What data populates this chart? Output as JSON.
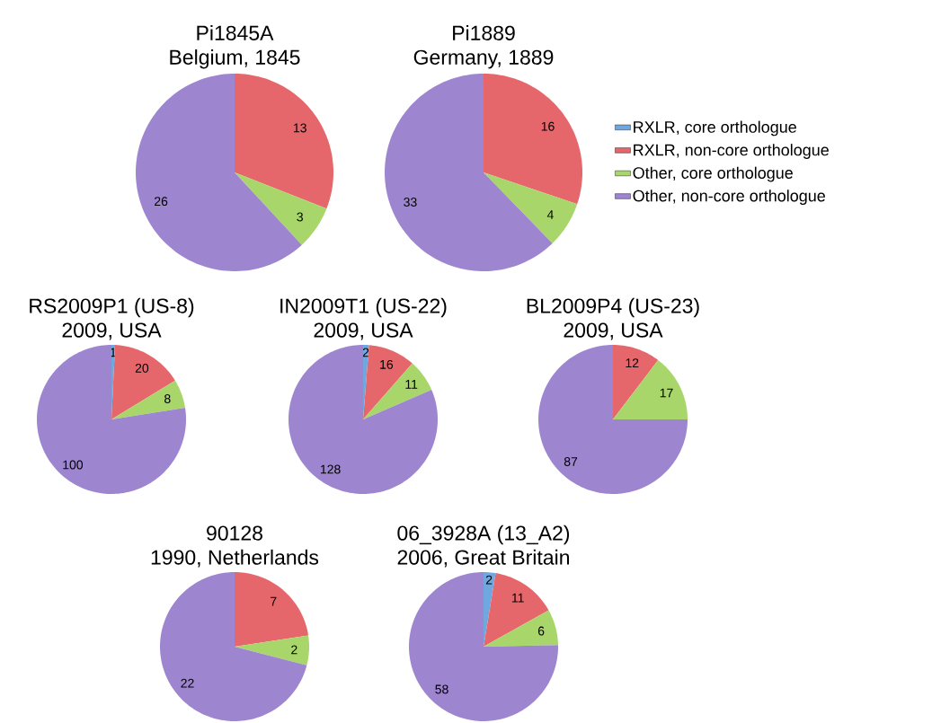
{
  "chart_data": [
    {
      "type": "pie",
      "title": "Pi1845A",
      "subtitle": "Belgium, 1845",
      "categories": [
        null,
        null,
        null,
        null
      ],
      "values": [
        0,
        13,
        3,
        26
      ],
      "value_labels": [
        null,
        "13",
        "3",
        "26"
      ],
      "colors": [
        "#6fa8e0",
        "#e5676b",
        "#a9d66b",
        "#9d85d0"
      ]
    },
    {
      "type": "pie",
      "title": "Pi1889",
      "subtitle": "Germany, 1889",
      "categories": [
        "RXLR, core orthologue",
        "RXLR, non-core orthologue",
        "Other, core orthologue",
        "Other, non-core orthologue"
      ],
      "values": [
        0,
        16,
        4,
        33
      ],
      "value_labels": [
        null,
        "16",
        "4",
        "33"
      ],
      "colors": [
        "#6fa8e0",
        "#e5676b",
        "#a9d66b",
        "#9d85d0"
      ],
      "legend": "right"
    },
    {
      "type": "pie",
      "title": "RS2009P1 (US-8)",
      "subtitle": "2009, USA",
      "categories": [
        null,
        null,
        null,
        null
      ],
      "values": [
        1,
        20,
        8,
        100
      ],
      "value_labels": [
        "1",
        "20",
        "8",
        "100"
      ],
      "colors": [
        "#6fa8e0",
        "#e5676b",
        "#a9d66b",
        "#9d85d0"
      ]
    },
    {
      "type": "pie",
      "title": "IN2009T1 (US-22)",
      "subtitle": "2009, USA",
      "categories": [
        null,
        null,
        null,
        null
      ],
      "values": [
        2,
        16,
        11,
        128
      ],
      "value_labels": [
        "2",
        "16",
        "11",
        "128"
      ],
      "colors": [
        "#6fa8e0",
        "#e5676b",
        "#a9d66b",
        "#9d85d0"
      ]
    },
    {
      "type": "pie",
      "title": "BL2009P4 (US-23)",
      "subtitle": "2009, USA",
      "categories": [
        null,
        null,
        null,
        null
      ],
      "values": [
        0,
        12,
        17,
        87
      ],
      "value_labels": [
        null,
        "12",
        "17",
        "87"
      ],
      "colors": [
        "#6fa8e0",
        "#e5676b",
        "#a9d66b",
        "#9d85d0"
      ]
    },
    {
      "type": "pie",
      "title": "90128",
      "subtitle": "1990, Netherlands",
      "categories": [
        null,
        null,
        null,
        null
      ],
      "values": [
        0,
        7,
        2,
        22
      ],
      "value_labels": [
        null,
        "7",
        "2",
        "22"
      ],
      "colors": [
        "#6fa8e0",
        "#e5676b",
        "#a9d66b",
        "#9d85d0"
      ]
    },
    {
      "type": "pie",
      "title": "06_3928A (13_A2)",
      "subtitle": "2006, Great Britain",
      "categories": [
        null,
        null,
        null,
        null
      ],
      "values": [
        2,
        11,
        6,
        58
      ],
      "value_labels": [
        "2",
        "11",
        "6",
        "58"
      ],
      "colors": [
        "#6fa8e0",
        "#e5676b",
        "#a9d66b",
        "#9d85d0"
      ]
    }
  ]
}
